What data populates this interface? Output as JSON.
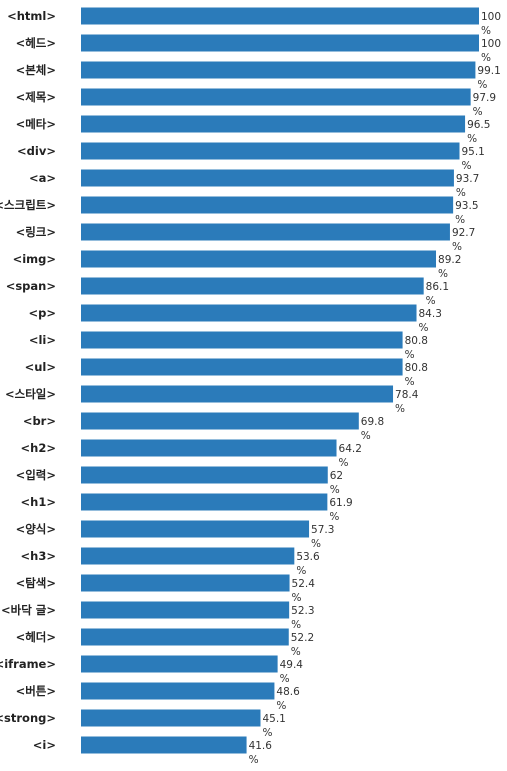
{
  "chart_data": {
    "type": "bar",
    "orientation": "horizontal",
    "categories": [
      "<html>",
      "<헤드>",
      "<본체>",
      "<제목>",
      "<메타>",
      "<div>",
      "<a>",
      "<스크립트>",
      "<링크>",
      "<img>",
      "<span>",
      "<p>",
      "<li>",
      "<ul>",
      "<스타일>",
      "<br>",
      "<h2>",
      "<입력>",
      "<h1>",
      "<양식>",
      "<h3>",
      "<탐색>",
      "<바닥 글>",
      "<헤더>",
      "<iframe>",
      "<버튼>",
      "<strong>",
      "<i>"
    ],
    "values": [
      100,
      100,
      99.1,
      97.9,
      96.5,
      95.1,
      93.7,
      93.5,
      92.7,
      89.2,
      86.1,
      84.3,
      80.8,
      80.8,
      78.4,
      69.8,
      64.2,
      62,
      61.9,
      57.3,
      53.6,
      52.4,
      52.3,
      52.2,
      49.4,
      48.6,
      45.1,
      41.6
    ],
    "value_suffix": "%",
    "xlim": [
      0,
      100
    ],
    "bar_color": "#2b7bba",
    "title": "",
    "xlabel": "",
    "ylabel": "",
    "grid": false,
    "legend": "none"
  }
}
